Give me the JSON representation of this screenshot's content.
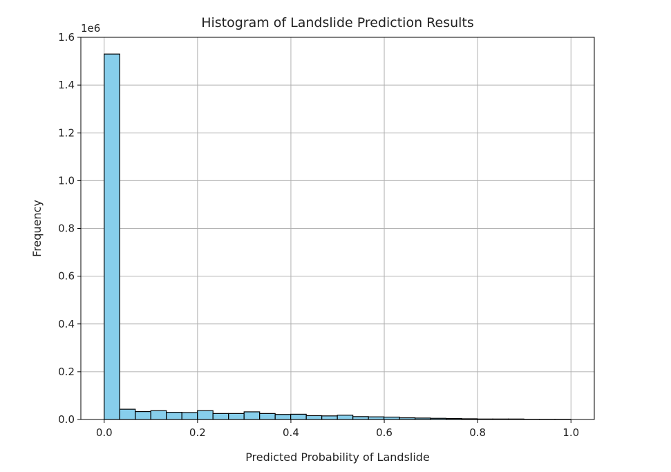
{
  "chart_data": {
    "type": "bar",
    "title": "Histogram of Landslide Prediction Results",
    "xlabel": "Predicted Probability of Landslide",
    "ylabel": "Frequency",
    "y_offset_label": "1e6",
    "xlim": [
      -0.05,
      1.05
    ],
    "ylim": [
      0,
      1.6
    ],
    "x_ticks": [
      "0.0",
      "0.2",
      "0.4",
      "0.6",
      "0.8",
      "1.0"
    ],
    "y_ticks": [
      "0.0",
      "0.2",
      "0.4",
      "0.6",
      "0.8",
      "1.0",
      "1.2",
      "1.4",
      "1.6"
    ],
    "grid": true,
    "bar_color": "#87CEEB",
    "bins": {
      "start": 0.0,
      "width": 0.0333,
      "values": [
        1.53,
        0.043,
        0.033,
        0.037,
        0.03,
        0.029,
        0.037,
        0.025,
        0.025,
        0.032,
        0.025,
        0.021,
        0.022,
        0.016,
        0.015,
        0.018,
        0.012,
        0.011,
        0.01,
        0.007,
        0.006,
        0.005,
        0.004,
        0.003,
        0.002,
        0.002,
        0.002,
        0.001,
        0.001,
        0.001
      ]
    }
  }
}
